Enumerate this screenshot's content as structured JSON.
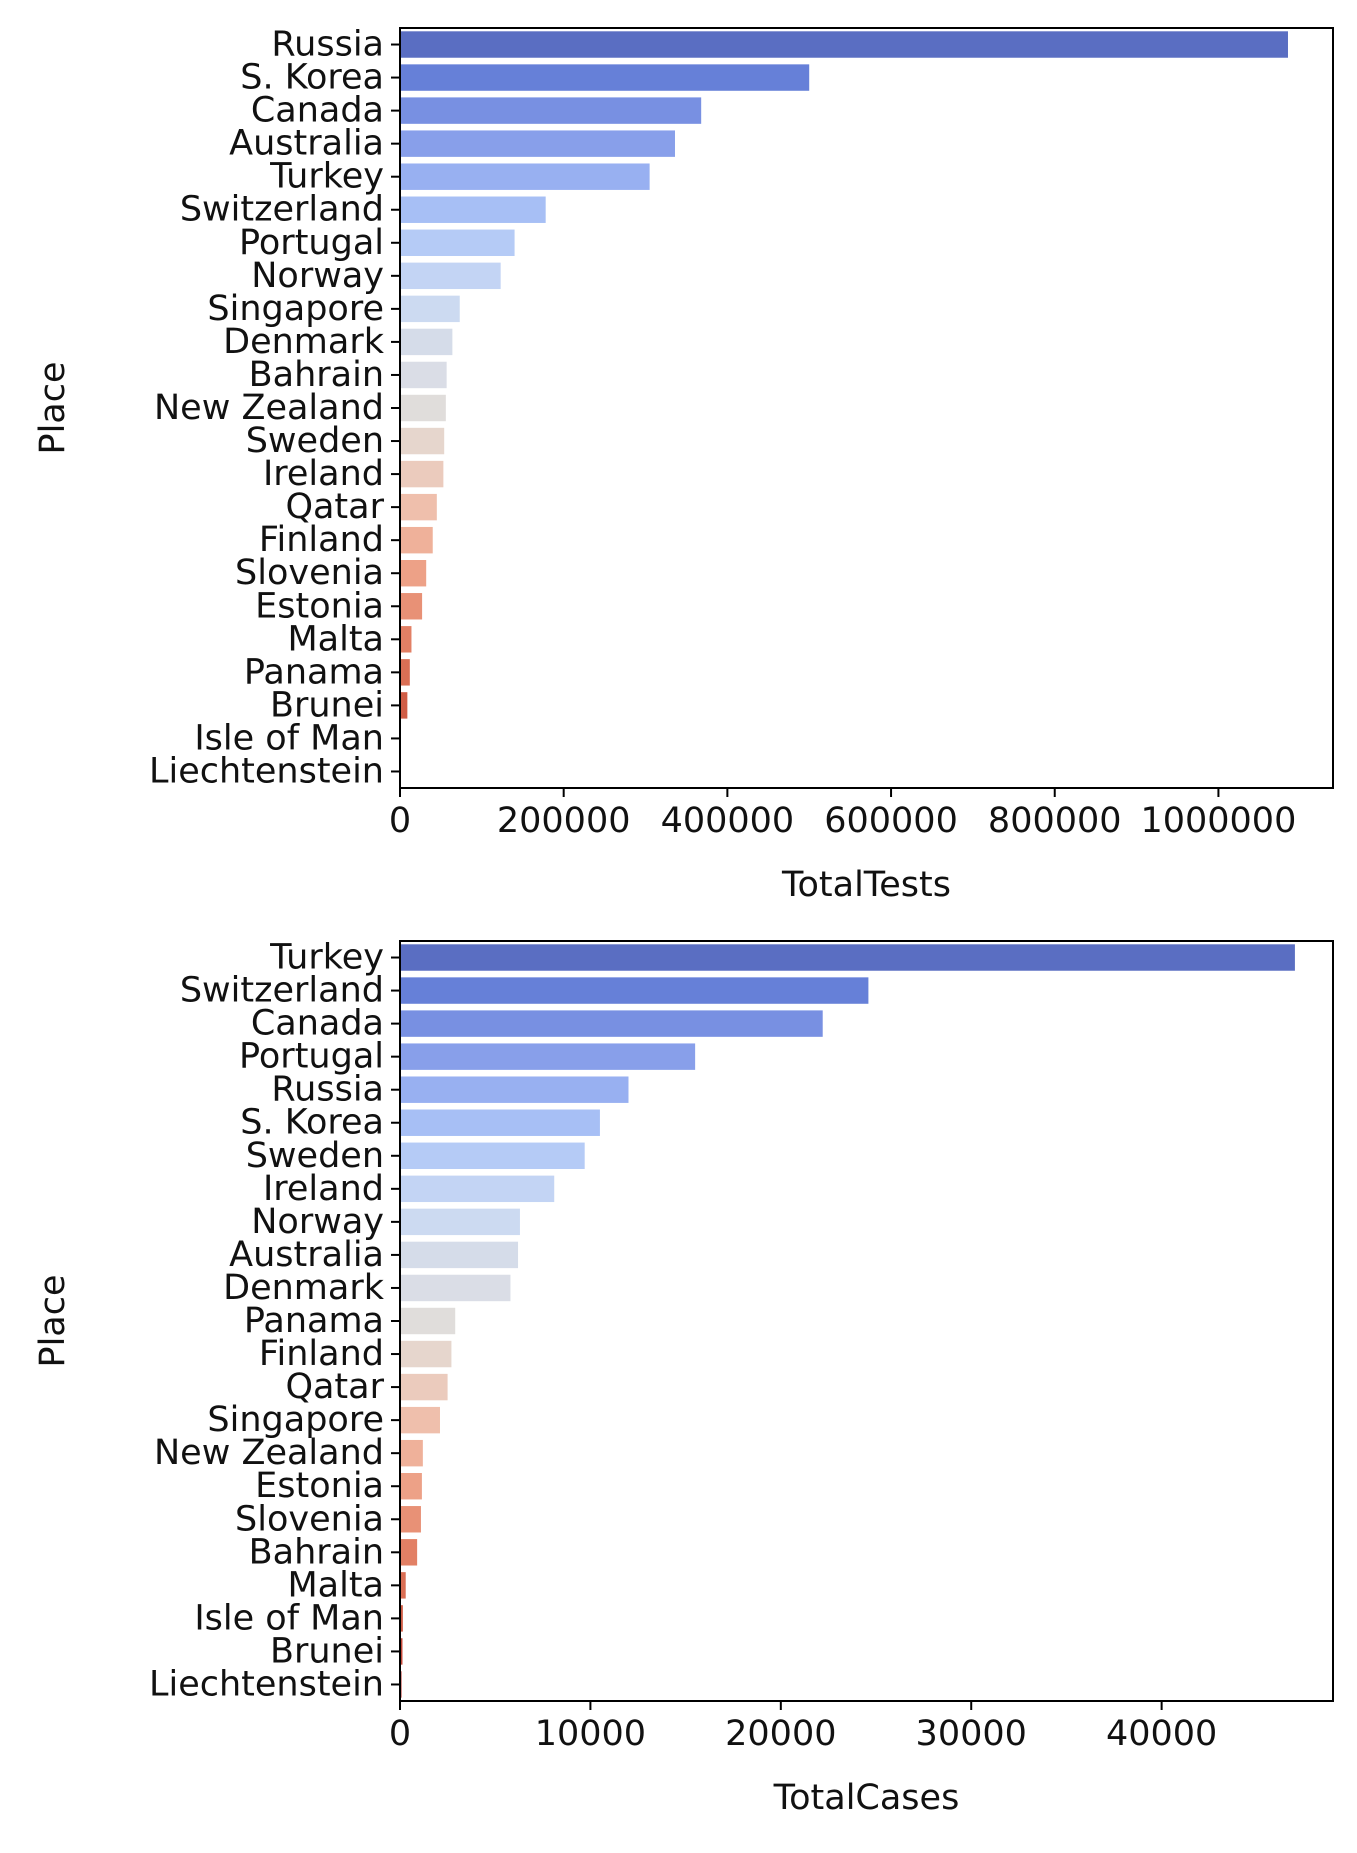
{
  "chart_data": [
    {
      "type": "bar",
      "orientation": "horizontal",
      "ylabel": "Place",
      "xlabel": "TotalTests",
      "xlim": [
        0,
        1140000
      ],
      "xticks": [
        0,
        200000,
        400000,
        600000,
        800000,
        1000000
      ],
      "xtick_labels": [
        "0",
        "200000",
        "400000",
        "600000",
        "800000",
        "1000000"
      ],
      "grid": false,
      "categories": [
        "Russia",
        "S. Korea",
        "Canada",
        "Australia",
        "Turkey",
        "Switzerland",
        "Portugal",
        "Norway",
        "Singapore",
        "Denmark",
        "Bahrain",
        "New Zealand",
        "Sweden",
        "Ireland",
        "Qatar",
        "Finland",
        "Slovenia",
        "Estonia",
        "Malta",
        "Panama",
        "Brunei",
        "Isle of Man",
        "Liechtenstein"
      ],
      "values": [
        1085000,
        500000,
        368000,
        336000,
        305000,
        178000,
        140000,
        123000,
        73000,
        64000,
        57000,
        56000,
        54000,
        53000,
        45000,
        40000,
        32000,
        27000,
        14000,
        12000,
        9000,
        500,
        500
      ],
      "palette": "coolwarm",
      "colors": [
        "#5a6ec2",
        "#6680d8",
        "#7890e2",
        "#889fea",
        "#98b0f1",
        "#a7bff5",
        "#b5cbf6",
        "#c3d4f4",
        "#ccdaf1",
        "#d5dce9",
        "#dadde6",
        "#e0dddb",
        "#e6d6cd",
        "#ebcbbd",
        "#efbfac",
        "#efb19a",
        "#eda187",
        "#e89176",
        "#e28065",
        "#da6f55",
        "#d05d46",
        "#c54a3a",
        "#b7372f"
      ]
    },
    {
      "type": "bar",
      "orientation": "horizontal",
      "ylabel": "Place",
      "xlabel": "TotalCases",
      "xlim": [
        0,
        49000
      ],
      "xticks": [
        0,
        10000,
        20000,
        30000,
        40000
      ],
      "xtick_labels": [
        "0",
        "10000",
        "20000",
        "30000",
        "40000"
      ],
      "grid": false,
      "categories": [
        "Turkey",
        "Switzerland",
        "Canada",
        "Portugal",
        "Russia",
        "S. Korea",
        "Sweden",
        "Ireland",
        "Norway",
        "Australia",
        "Denmark",
        "Panama",
        "Finland",
        "Qatar",
        "Singapore",
        "New Zealand",
        "Estonia",
        "Slovenia",
        "Bahrain",
        "Malta",
        "Isle of Man",
        "Brunei",
        "Liechtenstein"
      ],
      "values": [
        47000,
        24600,
        22200,
        15500,
        12000,
        10500,
        9700,
        8100,
        6300,
        6200,
        5800,
        2900,
        2700,
        2500,
        2100,
        1200,
        1150,
        1100,
        900,
        300,
        150,
        130,
        80
      ],
      "palette": "coolwarm",
      "colors": [
        "#5a6ec2",
        "#6680d8",
        "#7890e2",
        "#889fea",
        "#98b0f1",
        "#a7bff5",
        "#b5cbf6",
        "#c3d4f4",
        "#ccdaf1",
        "#d5dce9",
        "#dadde6",
        "#e0dddb",
        "#e6d6cd",
        "#ebcbbd",
        "#efbfac",
        "#efb19a",
        "#eda187",
        "#e89176",
        "#e28065",
        "#da6f55",
        "#d05d46",
        "#c54a3a",
        "#b7372f"
      ]
    }
  ]
}
